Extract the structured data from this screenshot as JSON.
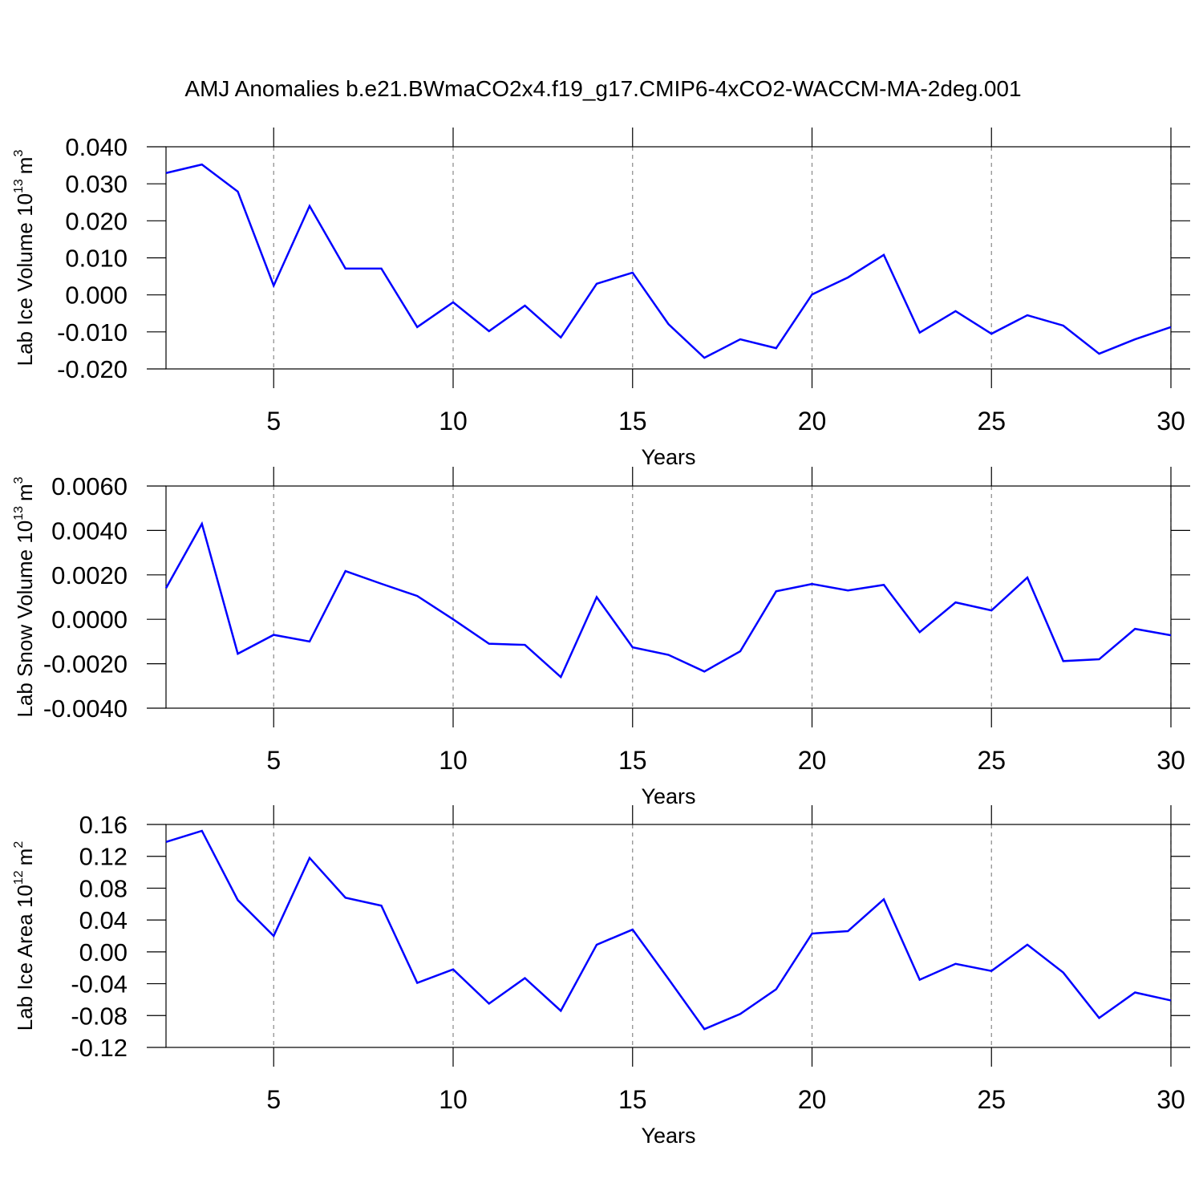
{
  "title": "AMJ Anomalies b.e21.BWmaCO2x4.f19_g17.CMIP6-4xCO2-WACCM-MA-2deg.001",
  "chart_data": [
    {
      "type": "line",
      "ylabel": [
        "Lab Ice Volume 10",
        "13",
        "m",
        "3"
      ],
      "xlabel": "Years",
      "color": "#0000ff",
      "grid": true,
      "x": [
        2,
        3,
        4,
        5,
        6,
        7,
        8,
        9,
        10,
        11,
        12,
        13,
        14,
        15,
        16,
        17,
        18,
        19,
        20,
        21,
        22,
        23,
        24,
        25,
        26,
        27,
        28,
        29,
        30
      ],
      "values": [
        0.0329,
        0.0352,
        0.0279,
        0.0025,
        0.024,
        0.0071,
        0.0071,
        -0.0087,
        -0.002,
        -0.0098,
        -0.0029,
        -0.0115,
        0.003,
        0.006,
        -0.0079,
        -0.017,
        -0.012,
        -0.0144,
        0.0001,
        0.0047,
        0.0108,
        -0.0102,
        -0.0044,
        -0.0105,
        -0.0055,
        -0.0083,
        -0.0159,
        -0.012,
        -0.0087
      ],
      "xlim": [
        2,
        30
      ],
      "xticks": [
        5,
        10,
        15,
        20,
        25,
        30
      ],
      "ylim": [
        -0.02,
        0.04
      ],
      "yticks": [
        {
          "value": -0.02,
          "label": "-0.020"
        },
        {
          "value": -0.01,
          "label": "-0.010"
        },
        {
          "value": 0,
          "label": "0.000"
        },
        {
          "value": 0.01,
          "label": "0.010"
        },
        {
          "value": 0.02,
          "label": "0.020"
        },
        {
          "value": 0.03,
          "label": "0.030"
        },
        {
          "value": 0.04,
          "label": "0.040"
        }
      ]
    },
    {
      "type": "line",
      "ylabel": [
        "Lab Snow Volume 10",
        "13",
        "m",
        "3"
      ],
      "xlabel": "Years",
      "color": "#0000ff",
      "grid": true,
      "x": [
        2,
        3,
        4,
        5,
        6,
        7,
        8,
        9,
        10,
        11,
        12,
        13,
        14,
        15,
        16,
        17,
        18,
        19,
        20,
        21,
        22,
        23,
        24,
        25,
        26,
        27,
        28,
        29,
        30
      ],
      "values": [
        0.0014,
        0.0043,
        -0.00155,
        -0.0007,
        -0.001,
        0.00217,
        0.0016,
        0.00105,
        0,
        -0.0011,
        -0.00115,
        -0.0026,
        0.001,
        -0.00126,
        -0.0016,
        -0.00235,
        -0.00144,
        0.00126,
        0.00159,
        0.0013,
        0.00155,
        -0.00058,
        0.00076,
        0.0004,
        0.00188,
        -0.00188,
        -0.0018,
        -0.00043,
        -0.00072
      ],
      "xlim": [
        2,
        30
      ],
      "xticks": [
        5,
        10,
        15,
        20,
        25,
        30
      ],
      "ylim": [
        -0.004,
        0.006
      ],
      "yticks": [
        {
          "value": -0.004,
          "label": "-0.0040"
        },
        {
          "value": -0.002,
          "label": "-0.0020"
        },
        {
          "value": 0,
          "label": "0.0000"
        },
        {
          "value": 0.002,
          "label": "0.0020"
        },
        {
          "value": 0.004,
          "label": "0.0040"
        },
        {
          "value": 0.006,
          "label": "0.0060"
        }
      ]
    },
    {
      "type": "line",
      "ylabel": [
        "Lab Ice Area 10",
        "12",
        "m",
        "2"
      ],
      "xlabel": "Years",
      "color": "#0000ff",
      "grid": true,
      "x": [
        2,
        3,
        4,
        5,
        6,
        7,
        8,
        9,
        10,
        11,
        12,
        13,
        14,
        15,
        16,
        17,
        18,
        19,
        20,
        21,
        22,
        23,
        24,
        25,
        26,
        27,
        28,
        29,
        30
      ],
      "values": [
        0.138,
        0.152,
        0.065,
        0.02,
        0.118,
        0.068,
        0.058,
        -0.039,
        -0.022,
        -0.065,
        -0.033,
        -0.074,
        0.009,
        0.028,
        -0.034,
        -0.097,
        -0.078,
        -0.047,
        0.023,
        0.026,
        0.066,
        -0.035,
        -0.015,
        -0.024,
        0.009,
        -0.026,
        -0.083,
        -0.051,
        -0.061
      ],
      "xlim": [
        2,
        30
      ],
      "xticks": [
        5,
        10,
        15,
        20,
        25,
        30
      ],
      "ylim": [
        -0.12,
        0.16
      ],
      "yticks": [
        {
          "value": -0.12,
          "label": "-0.12"
        },
        {
          "value": -0.08,
          "label": "-0.08"
        },
        {
          "value": -0.04,
          "label": "-0.04"
        },
        {
          "value": 0,
          "label": "0.00"
        },
        {
          "value": 0.04,
          "label": "0.04"
        },
        {
          "value": 0.08,
          "label": "0.08"
        },
        {
          "value": 0.12,
          "label": "0.12"
        },
        {
          "value": 0.16,
          "label": "0.16"
        }
      ]
    }
  ]
}
